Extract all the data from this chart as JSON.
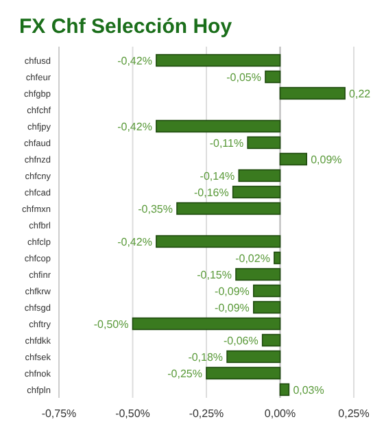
{
  "chart_data": {
    "type": "bar",
    "orientation": "horizontal",
    "title": "FX Chf Selección Hoy",
    "categories": [
      "chfusd",
      "chfeur",
      "chfgbp",
      "chfchf",
      "chfjpy",
      "chfaud",
      "chfnzd",
      "chfcny",
      "chfcad",
      "chfmxn",
      "chfbrl",
      "chfclp",
      "chfcop",
      "chfinr",
      "chfkrw",
      "chfsgd",
      "chftry",
      "chfdkk",
      "chfsek",
      "chfnok",
      "chfpln"
    ],
    "values": [
      -0.42,
      -0.05,
      0.22,
      null,
      -0.42,
      -0.11,
      0.09,
      -0.14,
      -0.16,
      -0.35,
      null,
      -0.42,
      -0.02,
      -0.15,
      -0.09,
      -0.09,
      -0.5,
      -0.06,
      -0.18,
      -0.25,
      0.03
    ],
    "value_labels": [
      "-0,42%",
      "-0,05%",
      "0,22",
      null,
      "-0,42%",
      "-0,11%",
      "0,09%",
      "-0,14%",
      "-0,16%",
      "-0,35%",
      null,
      "-0,42%",
      "-0,02%",
      "-0,15%",
      "-0,09%",
      "-0,09%",
      "-0,50%",
      "-0,06%",
      "-0,18%",
      "-0,25%",
      "0,03%"
    ],
    "color": "#3a7a1f",
    "xlim": [
      -0.75,
      0.25
    ],
    "xticks": [
      {
        "value": -0.75,
        "label": "-0,75%"
      },
      {
        "value": -0.5,
        "label": "-0,50%"
      },
      {
        "value": -0.25,
        "label": "-0,25%"
      },
      {
        "value": 0,
        "label": "0,00%"
      },
      {
        "value": 0.25,
        "label": "0,25%"
      }
    ],
    "grid": "x"
  }
}
